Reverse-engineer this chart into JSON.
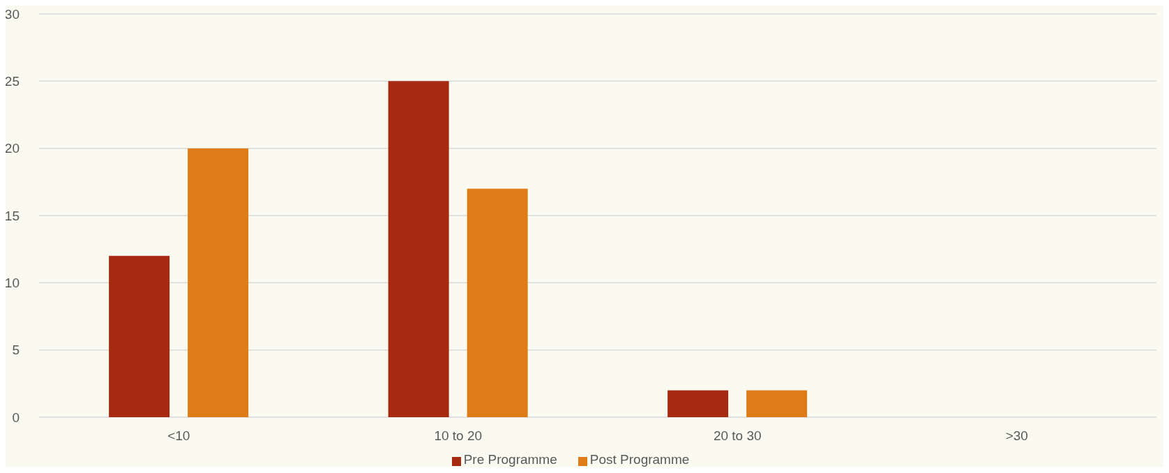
{
  "chart_data": {
    "type": "bar",
    "categories": [
      "<10",
      "10 to 20",
      "20 to 30",
      ">30"
    ],
    "series": [
      {
        "name": "Pre Programme",
        "color": "#a52a0f",
        "values": [
          12,
          25,
          2,
          0
        ]
      },
      {
        "name": "Post Programme",
        "color": "#de7c18",
        "values": [
          20,
          17,
          2,
          0
        ]
      }
    ],
    "ylim": [
      0,
      30
    ],
    "yticks": [
      0,
      5,
      10,
      15,
      20,
      25,
      30
    ],
    "grid": "y",
    "legend": "bottom"
  }
}
